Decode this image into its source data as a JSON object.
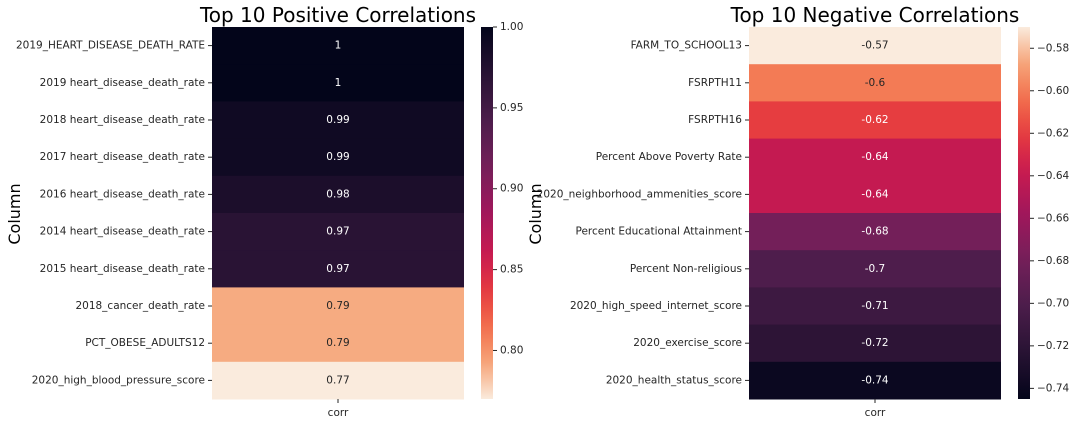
{
  "chart_data": [
    {
      "type": "heatmap",
      "title": "Top 10 Positive Correlations",
      "ylabel": "Column",
      "xlabel": "",
      "columns": [
        "corr"
      ],
      "rows": [
        "2019_HEART_DISEASE_DEATH_RATE",
        "2019 heart_disease_death_rate",
        "2018 heart_disease_death_rate",
        "2017 heart_disease_death_rate",
        "2016 heart_disease_death_rate",
        "2014 heart_disease_death_rate",
        "2015 heart_disease_death_rate",
        "2018_cancer_death_rate",
        "PCT_OBESE_ADULTS12",
        "2020_high_blood_pressure_score"
      ],
      "values": [
        1.0,
        1.0,
        0.99,
        0.99,
        0.98,
        0.97,
        0.97,
        0.79,
        0.79,
        0.77
      ],
      "value_labels": [
        "1",
        "1",
        "0.99",
        "0.99",
        "0.98",
        "0.97",
        "0.97",
        "0.79",
        "0.79",
        "0.77"
      ],
      "colorbar_range": [
        0.77,
        1.0
      ],
      "colorbar_ticks": [
        0.8,
        0.85,
        0.9,
        0.95,
        1.0
      ],
      "colorbar_tick_labels": [
        "0.80",
        "0.85",
        "0.90",
        "0.95",
        "1.00"
      ],
      "colormap": "rocket_r"
    },
    {
      "type": "heatmap",
      "title": "Top 10 Negative Correlations",
      "ylabel": "Column",
      "xlabel": "",
      "columns": [
        "corr"
      ],
      "rows": [
        "FARM_TO_SCHOOL13",
        "FSRPTH11",
        "FSRPTH16",
        "Percent Above Poverty Rate",
        "2020_neighborhood_ammenities_score",
        "Percent Educational Attainment",
        "Percent Non-religious",
        "2020_high_speed_internet_score",
        "2020_exercise_score",
        "2020_health_status_score"
      ],
      "values": [
        -0.57,
        -0.6,
        -0.62,
        -0.64,
        -0.64,
        -0.68,
        -0.7,
        -0.71,
        -0.72,
        -0.74
      ],
      "value_labels": [
        "-0.57",
        "-0.6",
        "-0.62",
        "-0.64",
        "-0.64",
        "-0.68",
        "-0.7",
        "-0.71",
        "-0.72",
        "-0.74"
      ],
      "colorbar_range": [
        -0.745,
        -0.57
      ],
      "colorbar_ticks": [
        -0.58,
        -0.6,
        -0.62,
        -0.64,
        -0.66,
        -0.68,
        -0.7,
        -0.72,
        -0.74
      ],
      "colorbar_tick_labels": [
        "−0.58",
        "−0.60",
        "−0.62",
        "−0.64",
        "−0.66",
        "−0.68",
        "−0.70",
        "−0.72",
        "−0.74"
      ],
      "colormap": "rocket"
    }
  ]
}
